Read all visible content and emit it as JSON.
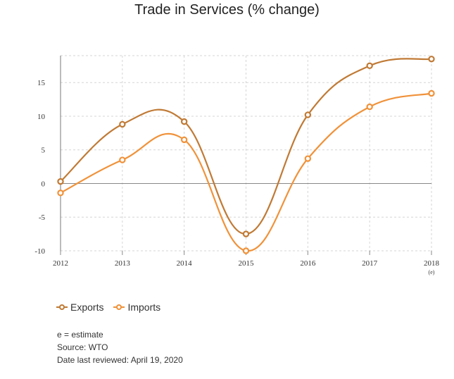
{
  "chart_data": {
    "type": "line",
    "title": "Trade in Services (% change)",
    "xlabel": "",
    "ylabel": "",
    "x": [
      "2012",
      "2013",
      "2014",
      "2015",
      "2016",
      "2017",
      "2018"
    ],
    "x_sublabels": [
      "",
      "",
      "",
      "",
      "",
      "",
      "(e)"
    ],
    "ylim": [
      -10,
      19
    ],
    "yticks": [
      "-10",
      "-5",
      "0",
      "5",
      "10",
      "15"
    ],
    "grid": true,
    "legend_position": "bottom-left",
    "series": [
      {
        "name": "Exports",
        "color": "#c07a35",
        "values": [
          0.3,
          8.8,
          9.2,
          -7.5,
          10.2,
          17.5,
          18.5
        ]
      },
      {
        "name": "Imports",
        "color": "#f0923a",
        "values": [
          -1.4,
          3.5,
          6.5,
          -10.0,
          3.7,
          11.4,
          13.4
        ]
      }
    ]
  },
  "notes": {
    "estimate": "e = estimate",
    "source": "Source: WTO",
    "reviewed": "Date last reviewed: April 19, 2020"
  }
}
